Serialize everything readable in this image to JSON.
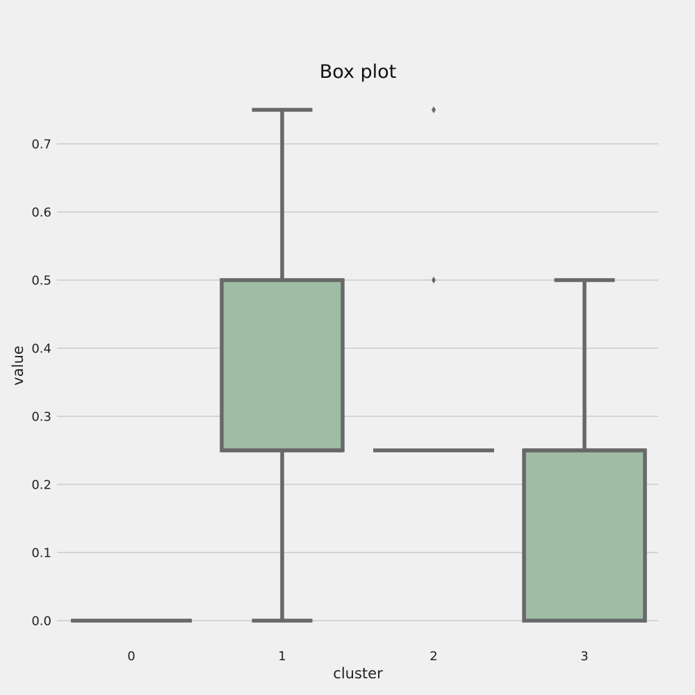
{
  "chart_data": {
    "type": "box",
    "title": "Box plot",
    "xlabel": "cluster",
    "ylabel": "value",
    "categories": [
      "0",
      "1",
      "2",
      "3"
    ],
    "ylim": [
      -0.03,
      0.77
    ],
    "yticks": [
      "0.0",
      "0.1",
      "0.2",
      "0.3",
      "0.4",
      "0.5",
      "0.6",
      "0.7"
    ],
    "grid": "horizontal",
    "boxes": [
      {
        "category": "0",
        "whisker_low": 0.0,
        "q1": 0.0,
        "median": 0.0,
        "q3": 0.0,
        "whisker_high": 0.0,
        "outliers": []
      },
      {
        "category": "1",
        "whisker_low": 0.0,
        "q1": 0.25,
        "median": 0.25,
        "q3": 0.5,
        "whisker_high": 0.75,
        "outliers": []
      },
      {
        "category": "2",
        "whisker_low": 0.25,
        "q1": 0.25,
        "median": 0.25,
        "q3": 0.25,
        "whisker_high": 0.25,
        "outliers": [
          0.5,
          0.75
        ]
      },
      {
        "category": "3",
        "whisker_low": 0.0,
        "q1": 0.0,
        "median": 0.25,
        "q3": 0.25,
        "whisker_high": 0.5,
        "outliers": []
      }
    ],
    "colors": {
      "box_fill": "#9fbca5",
      "line": "#686868",
      "grid": "#cbcbcb",
      "background": "#f0f0f0"
    }
  }
}
